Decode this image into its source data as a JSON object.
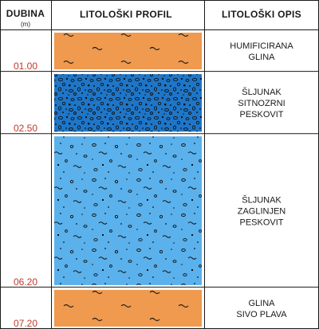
{
  "header": {
    "depth_title": "DUBINA",
    "depth_unit": "(m)",
    "profile_title": "LITOLOŠKI PROFIL",
    "description_title": "LITOLOŠKI OPIS"
  },
  "colors": {
    "clay": "#ef9a4e",
    "gravel_dense": "#1e76c8",
    "gravel_clayey": "#5ab1ec",
    "depth_text": "#c0392b",
    "line": "#1a1a1a"
  },
  "layers": [
    {
      "type": "clay",
      "top_m": 0.0,
      "bottom_m": 1.0,
      "depth_label": "01.00",
      "description": [
        "HUMIFICIRANA",
        "GLINA"
      ]
    },
    {
      "type": "gravel_dense",
      "top_m": 1.0,
      "bottom_m": 2.5,
      "depth_label": "02.50",
      "description": [
        "ŠLJUNAK",
        "SITNOZRNI",
        "PESKOVIT"
      ]
    },
    {
      "type": "gravel_clayey",
      "top_m": 2.5,
      "bottom_m": 6.2,
      "depth_label": "06.20",
      "description": [
        "ŠLJUNAK",
        "ZAGLINJEN",
        "PESKOVIT"
      ]
    },
    {
      "type": "clay",
      "top_m": 6.2,
      "bottom_m": 7.2,
      "depth_label": "07.20",
      "description": [
        "GLINA",
        "SIVO PLAVA"
      ]
    }
  ]
}
